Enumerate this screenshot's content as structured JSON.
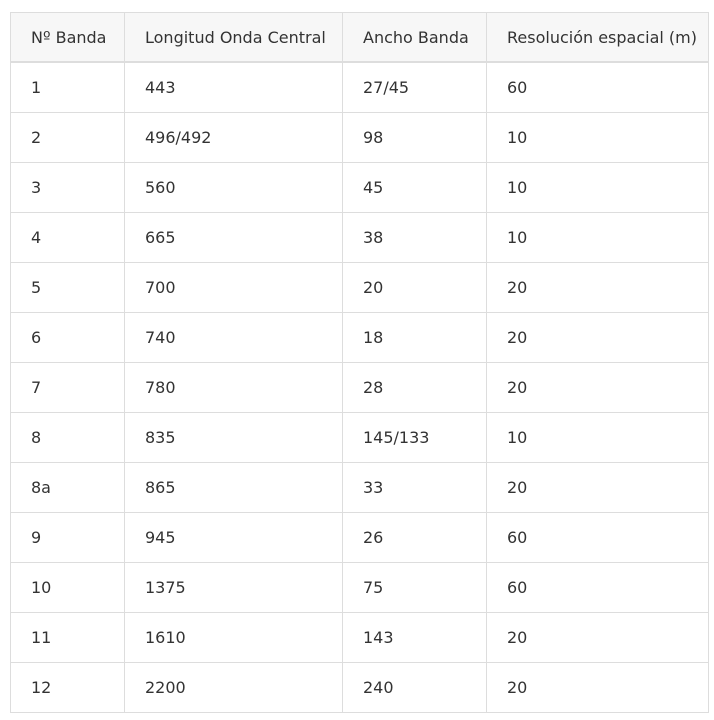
{
  "table": {
    "headers": [
      "Nº Banda",
      "Longitud Onda Central",
      "Ancho Banda",
      "Resolución espacial (m)"
    ],
    "rows": [
      [
        "1",
        "443",
        "27/45",
        "60"
      ],
      [
        "2",
        "496/492",
        "98",
        "10"
      ],
      [
        "3",
        "560",
        "45",
        "10"
      ],
      [
        "4",
        "665",
        "38",
        "10"
      ],
      [
        "5",
        "700",
        "20",
        "20"
      ],
      [
        "6",
        "740",
        "18",
        "20"
      ],
      [
        "7",
        "780",
        "28",
        "20"
      ],
      [
        "8",
        "835",
        "145/133",
        "10"
      ],
      [
        "8a",
        "865",
        "33",
        "20"
      ],
      [
        "9",
        "945",
        "26",
        "60"
      ],
      [
        "10",
        "1375",
        "75",
        "60"
      ],
      [
        "11",
        "1610",
        "143",
        "20"
      ],
      [
        "12",
        "2200",
        "240",
        "20"
      ]
    ]
  }
}
